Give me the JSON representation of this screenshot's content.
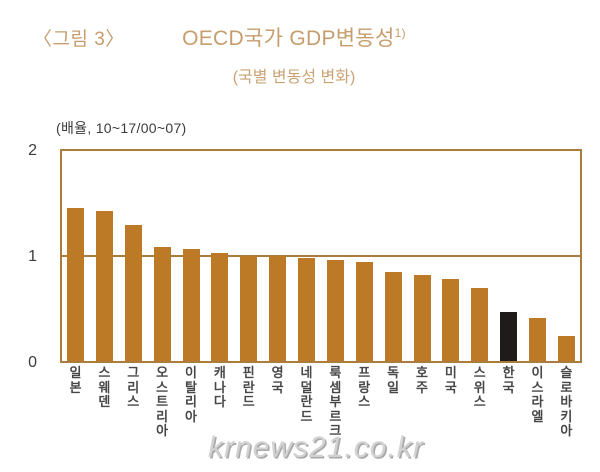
{
  "header": {
    "figure_label": "〈그림 3〉",
    "title": "OECD국가 GDP변동성",
    "title_superscript": "1)",
    "subtitle": "(국별 변동성 변화)"
  },
  "axis": {
    "unit_label": "(배율, 10~17/00~07)",
    "yticks": [
      "2",
      "1",
      "0"
    ]
  },
  "watermark": "krnews21.co.kr",
  "colors": {
    "accent_text": "#c69d6d",
    "frame": "#aa7c3e",
    "bar": "#bc7a26",
    "bar_highlight": "#1e1b1a",
    "axis_text": "#3c3c3c",
    "watermark": "#d2d2d2"
  },
  "chart_data": {
    "type": "bar",
    "title": "OECD국가 GDP변동성 (국별 변동성 변화)",
    "xlabel": "",
    "ylabel": "(배율, 10~17/00~07)",
    "ylim": [
      0,
      2
    ],
    "yticks": [
      0,
      1,
      2
    ],
    "reference_line": 1,
    "grid": false,
    "legend": false,
    "categories": [
      "일본",
      "스웨덴",
      "그리스",
      "오스트리아",
      "이탈리아",
      "캐나다",
      "핀란드",
      "영국",
      "네덜란드",
      "룩셈부르크",
      "프랑스",
      "독일",
      "호주",
      "미국",
      "스위스",
      "한국",
      "이스라엘",
      "슬로바키아"
    ],
    "values": [
      1.46,
      1.43,
      1.3,
      1.09,
      1.07,
      1.03,
      1.0,
      1.0,
      0.98,
      0.96,
      0.94,
      0.85,
      0.82,
      0.78,
      0.7,
      0.47,
      0.41,
      0.24
    ],
    "highlight_category": "한국",
    "bar_color": "#bc7a26",
    "highlight_color": "#1e1b1a"
  }
}
